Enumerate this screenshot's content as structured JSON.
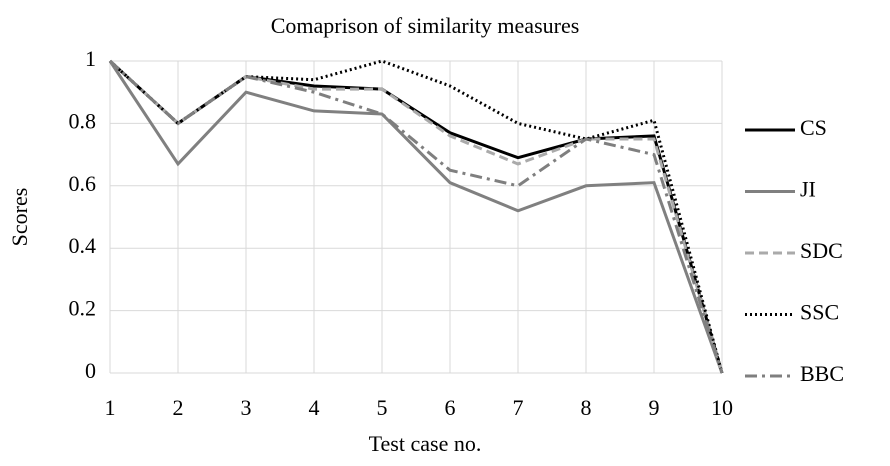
{
  "chart_data": {
    "type": "line",
    "title": "Comaprison of similarity measures",
    "xlabel": "Test case no.",
    "ylabel": "Scores",
    "x": [
      1,
      2,
      3,
      4,
      5,
      6,
      7,
      8,
      9,
      10
    ],
    "xlim": [
      1,
      10
    ],
    "xticks": [
      1,
      2,
      3,
      4,
      5,
      6,
      7,
      8,
      9,
      10
    ],
    "ylim": [
      0,
      1
    ],
    "yticks": [
      0,
      0.2,
      0.4,
      0.6,
      0.8,
      1
    ],
    "grid": true,
    "legend": "right",
    "series": [
      {
        "name": "CS",
        "color": "#000000",
        "style": "solid",
        "values": [
          1,
          0.8,
          0.95,
          0.92,
          0.91,
          0.77,
          0.69,
          0.75,
          0.76,
          0
        ]
      },
      {
        "name": "JI",
        "color": "#808080",
        "style": "solid",
        "values": [
          1,
          0.67,
          0.9,
          0.84,
          0.83,
          0.61,
          0.52,
          0.6,
          0.61,
          0
        ]
      },
      {
        "name": "SDC",
        "color": "#aaaaaa",
        "style": "dashed",
        "values": [
          1,
          0.8,
          0.95,
          0.91,
          0.91,
          0.76,
          0.67,
          0.75,
          0.75,
          0
        ]
      },
      {
        "name": "SSC",
        "color": "#000000",
        "style": "dotted",
        "values": [
          1,
          0.8,
          0.95,
          0.94,
          1.0,
          0.92,
          0.8,
          0.75,
          0.81,
          0
        ]
      },
      {
        "name": "BBC",
        "color": "#7f7f7f",
        "style": "dashdot",
        "values": [
          1,
          0.8,
          0.95,
          0.9,
          0.83,
          0.65,
          0.6,
          0.75,
          0.7,
          0
        ]
      }
    ]
  }
}
